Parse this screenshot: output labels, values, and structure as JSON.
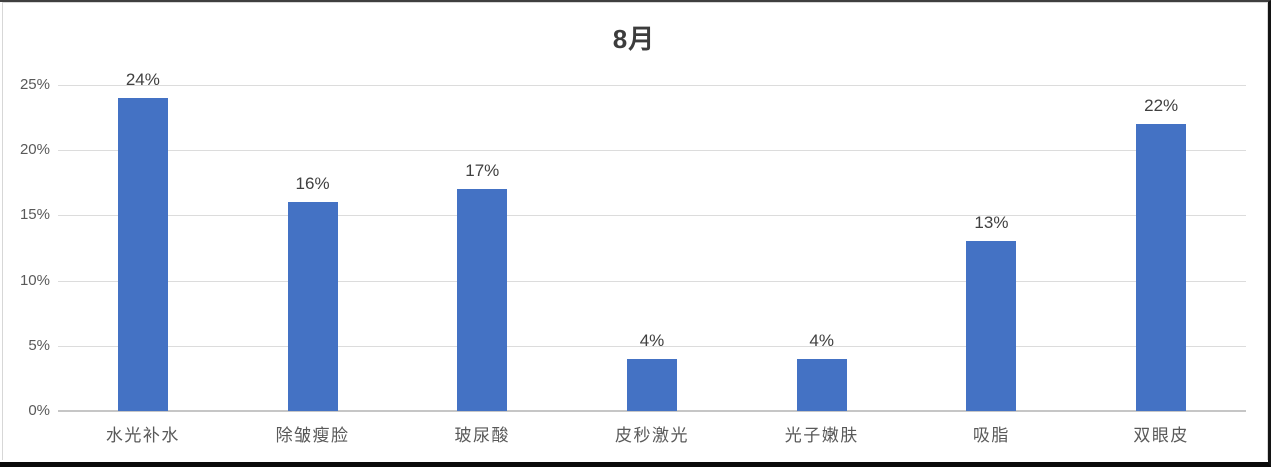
{
  "chart_data": {
    "type": "bar",
    "title": "8月",
    "categories": [
      "水光补水",
      "除皱瘦脸",
      "玻尿酸",
      "皮秒激光",
      "光子嫩肤",
      "吸脂",
      "双眼皮"
    ],
    "values": [
      24,
      16,
      17,
      4,
      4,
      13,
      22
    ],
    "data_labels": [
      "24%",
      "16%",
      "17%",
      "4%",
      "4%",
      "13%",
      "22%"
    ],
    "y_ticks": [
      "0%",
      "5%",
      "10%",
      "15%",
      "20%",
      "25%"
    ],
    "ylim": [
      0,
      25
    ],
    "y_tick_step": 5,
    "xlabel": "",
    "ylabel": "",
    "grid": true,
    "legend": "none",
    "bar_color": "#4472C4",
    "gridline_color": "#DCDCDC",
    "axis_line_color": "#C6C6C6",
    "title_color": "#3C3C3C",
    "data_label_color": "#404040",
    "tick_label_color": "#595959"
  }
}
